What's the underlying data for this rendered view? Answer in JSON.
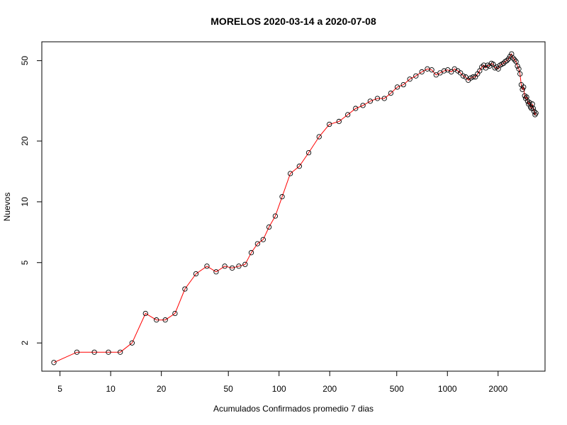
{
  "chart_data": {
    "type": "line",
    "title": "MORELOS 2020-03-14 a 2020-07-08",
    "xlabel": "Acumulados Confirmados promedio  7  dias",
    "ylabel": "Nuevos",
    "x_scale": "log",
    "y_scale": "log",
    "xlim": [
      3.9,
      3800
    ],
    "ylim": [
      1.45,
      62
    ],
    "x_ticks": [
      5,
      10,
      20,
      50,
      100,
      200,
      500,
      1000,
      2000
    ],
    "x_tick_labels": [
      "5",
      "10",
      "20",
      "50",
      "100",
      "200",
      "500",
      "1000",
      "2000"
    ],
    "y_ticks": [
      2,
      5,
      10,
      20,
      50
    ],
    "y_tick_labels": [
      "2",
      "5",
      "10",
      "20",
      "50"
    ],
    "grid": false,
    "legend": "none",
    "line_color": "#ff0000",
    "point_color": "#000000",
    "series": [
      {
        "x": [
          4.6,
          6.3,
          8,
          9.7,
          11.4,
          13.4,
          16.1,
          18.7,
          21.1,
          24.1,
          27.6,
          32.1,
          37.3,
          42.3,
          47.6,
          52.7,
          57.7,
          62.9,
          68.4,
          74.5,
          80.5,
          87.2,
          95,
          104.3,
          116.7,
          132,
          150,
          173,
          199,
          227,
          256,
          285,
          315,
          348,
          384,
          422,
          461,
          504,
          548,
          598,
          650,
          705,
          760,
          807,
          857,
          905,
          955,
          1005,
          1055,
          1102,
          1152,
          1195,
          1240,
          1285,
          1330,
          1375,
          1420,
          1465,
          1510,
          1555,
          1600,
          1645,
          1690,
          1735,
          1780,
          1825,
          1870,
          1915,
          1960,
          2005,
          2055,
          2105,
          2155,
          2205,
          2255,
          2305,
          2355,
          2405,
          2455,
          2505,
          2555,
          2605,
          2655,
          2700,
          2745,
          2790,
          2835,
          2875,
          2915,
          2955,
          2995,
          3035,
          3075,
          3115,
          3155,
          3195,
          3235,
          3275,
          3315,
          3355
        ],
        "y": [
          1.6,
          1.8,
          1.8,
          1.8,
          1.8,
          2.0,
          2.8,
          2.6,
          2.6,
          2.8,
          3.7,
          4.4,
          4.8,
          4.5,
          4.8,
          4.7,
          4.8,
          4.9,
          5.6,
          6.2,
          6.5,
          7.5,
          8.5,
          10.6,
          13.8,
          15.0,
          17.5,
          21.0,
          24.2,
          25.0,
          27.0,
          29.0,
          30.0,
          31.5,
          32.5,
          32.5,
          34.5,
          37.0,
          38.0,
          40.5,
          42.0,
          44.0,
          45.5,
          45.0,
          42.5,
          43.5,
          44.5,
          45.0,
          44.0,
          45.5,
          44.5,
          43.5,
          42.0,
          41.5,
          40.0,
          41.0,
          41.5,
          41.5,
          43.0,
          44.5,
          46.5,
          47.5,
          46.0,
          47.5,
          47.0,
          48.5,
          48.0,
          46.0,
          46.5,
          45.5,
          47.5,
          48.0,
          48.5,
          49.5,
          50.0,
          51.0,
          52.5,
          54.0,
          51.5,
          50.5,
          49.5,
          47.0,
          45.5,
          43.0,
          38.0,
          36.0,
          37.0,
          33.5,
          32.5,
          33.0,
          31.5,
          30.5,
          31.0,
          29.5,
          29.0,
          30.5,
          29.0,
          28.0,
          27.0,
          27.5
        ]
      }
    ]
  }
}
